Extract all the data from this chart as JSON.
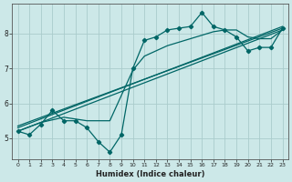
{
  "xlabel": "Humidex (Indice chaleur)",
  "bg_color": "#cce8e8",
  "grid_color": "#aacccc",
  "line_color": "#006666",
  "xlim": [
    -0.5,
    23.5
  ],
  "ylim": [
    4.4,
    8.85
  ],
  "yticks": [
    5,
    6,
    7,
    8
  ],
  "xticks": [
    0,
    1,
    2,
    3,
    4,
    5,
    6,
    7,
    8,
    9,
    10,
    11,
    12,
    13,
    14,
    15,
    16,
    17,
    18,
    19,
    20,
    21,
    22,
    23
  ],
  "series1_x": [
    0,
    1,
    2,
    3,
    4,
    5,
    6,
    7,
    8,
    9,
    10,
    11,
    12,
    13,
    14,
    15,
    16,
    17,
    18,
    19,
    20,
    21,
    22,
    23
  ],
  "series1_y": [
    5.2,
    5.1,
    5.4,
    5.8,
    5.5,
    5.5,
    5.3,
    4.9,
    4.6,
    5.1,
    7.0,
    7.8,
    7.9,
    8.1,
    8.15,
    8.2,
    8.6,
    8.2,
    8.1,
    7.9,
    7.5,
    7.6,
    7.6,
    8.15
  ],
  "series2_x": [
    0,
    2,
    4,
    6,
    8,
    10,
    11,
    12,
    13,
    14,
    15,
    16,
    17,
    18,
    19,
    20,
    21,
    22,
    23
  ],
  "series2_y": [
    5.2,
    5.45,
    5.6,
    5.5,
    5.5,
    6.95,
    7.35,
    7.5,
    7.65,
    7.75,
    7.85,
    7.95,
    8.05,
    8.1,
    8.1,
    7.9,
    7.85,
    7.85,
    8.1
  ],
  "series3_x": [
    0,
    23
  ],
  "series3_y": [
    5.2,
    8.1
  ],
  "series4_x": [
    0,
    23
  ],
  "series4_y": [
    5.3,
    8.2
  ],
  "series5_x": [
    0,
    23
  ],
  "series5_y": [
    5.35,
    8.15
  ]
}
